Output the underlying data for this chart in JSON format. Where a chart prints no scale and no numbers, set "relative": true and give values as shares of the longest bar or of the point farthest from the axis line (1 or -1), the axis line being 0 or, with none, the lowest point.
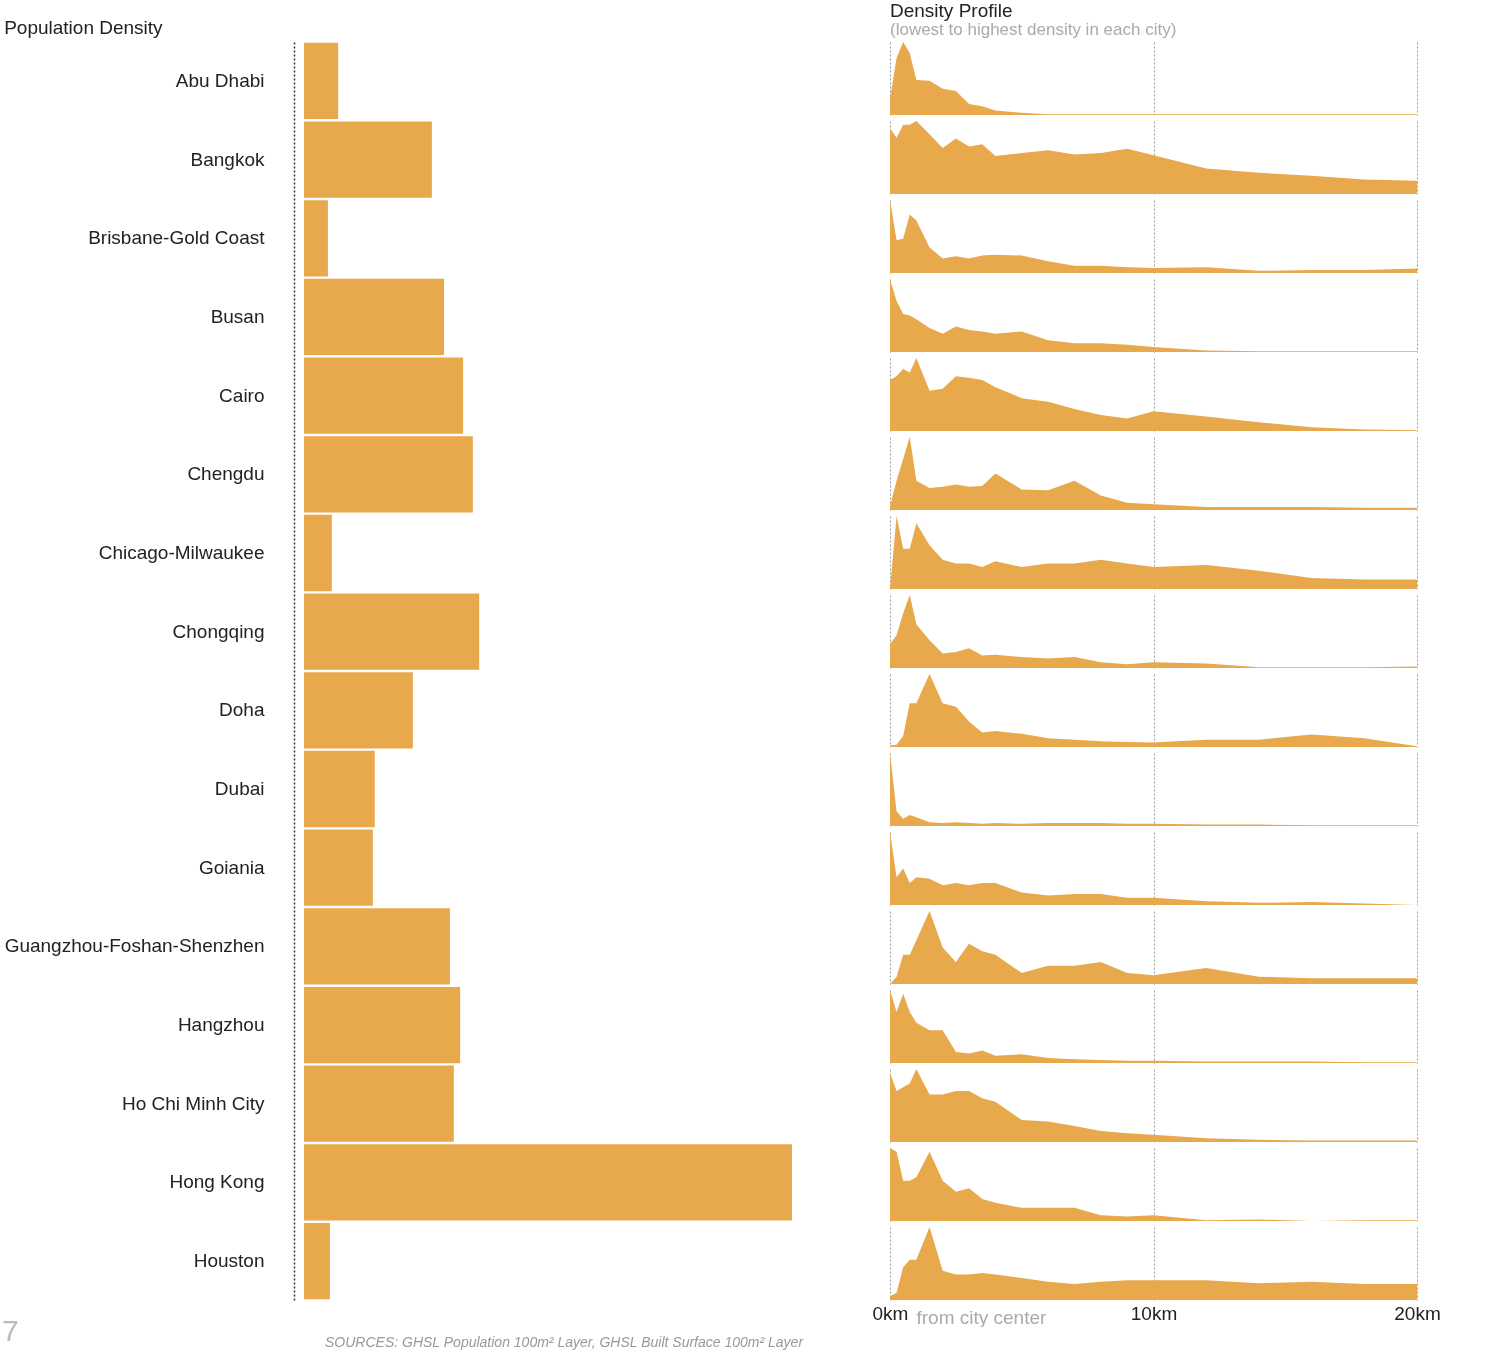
{
  "chart_data": [
    {
      "type": "bar",
      "title": "Population Density",
      "orientation": "horizontal",
      "relative": true,
      "color": "#e8a84c",
      "categories": [
        "Abu Dhabi",
        "Bangkok",
        "Brisbane-Gold Coast",
        "Busan",
        "Cairo",
        "Chengdu",
        "Chicago-Milwaukee",
        "Chongqing",
        "Doha",
        "Dubai",
        "Goiania",
        "Guangzhou-Foshan-Shenzhen",
        "Hangzhou",
        "Ho Chi Minh City",
        "Hong Kong",
        "Houston"
      ],
      "values": [
        0.07,
        0.262,
        0.049,
        0.287,
        0.326,
        0.346,
        0.057,
        0.359,
        0.223,
        0.145,
        0.141,
        0.299,
        0.32,
        0.307,
        1,
        0.053
      ],
      "annotations": [
        "SOURCES: GHSL Population 100m² Layer, GHSL Built Surface 100m² Layer",
        "7"
      ]
    },
    {
      "type": "area",
      "title": "Density Profile",
      "subtitle": "(lowest to highest density in each city)",
      "relative": true,
      "color": "#e8a84c",
      "xlim": [
        0,
        20
      ],
      "xticks": [
        0,
        10,
        20
      ],
      "grid": "x",
      "tick_labels": false,
      "x": [
        0,
        0.25,
        0.5,
        0.75,
        1,
        1.5,
        2,
        2.5,
        3,
        3.5,
        4,
        5,
        6,
        7,
        8,
        9,
        10,
        12,
        14,
        16,
        18,
        20
      ],
      "values": [
        0.22,
        0.78,
        1,
        0.85,
        0.48,
        0.47,
        0.36,
        0.33,
        0.15,
        0.12,
        0.06,
        0.03,
        0.01,
        0.01,
        0.01,
        0.01,
        0.01,
        0.01,
        0.01,
        0.01,
        0.01,
        0.01
      ]
    },
    {
      "type": "area",
      "relative": true,
      "color": "#e8a84c",
      "xlim": [
        0,
        20
      ],
      "xticks": [
        0,
        10,
        20
      ],
      "grid": "x",
      "tick_labels": false,
      "x": [
        0,
        0.25,
        0.5,
        0.75,
        1,
        1.5,
        2,
        2.5,
        3,
        3.5,
        4,
        5,
        6,
        7,
        8,
        9,
        10,
        12,
        14,
        16,
        18,
        20
      ],
      "values": [
        0.9,
        0.77,
        0.95,
        0.95,
        1,
        0.82,
        0.63,
        0.76,
        0.65,
        0.68,
        0.52,
        0.56,
        0.6,
        0.54,
        0.56,
        0.62,
        0.53,
        0.35,
        0.29,
        0.25,
        0.2,
        0.18
      ]
    },
    {
      "type": "area",
      "relative": true,
      "color": "#e8a84c",
      "xlim": [
        0,
        20
      ],
      "xticks": [
        0,
        10,
        20
      ],
      "grid": "x",
      "tick_labels": false,
      "x": [
        0,
        0.25,
        0.5,
        0.75,
        1,
        1.5,
        2,
        2.5,
        3,
        3.5,
        4,
        5,
        6,
        7,
        8,
        9,
        10,
        12,
        14,
        16,
        18,
        20
      ],
      "values": [
        1,
        0.45,
        0.47,
        0.8,
        0.72,
        0.35,
        0.2,
        0.23,
        0.2,
        0.24,
        0.25,
        0.24,
        0.16,
        0.1,
        0.1,
        0.08,
        0.07,
        0.08,
        0.03,
        0.04,
        0.04,
        0.06
      ]
    },
    {
      "type": "area",
      "relative": true,
      "color": "#e8a84c",
      "xlim": [
        0,
        20
      ],
      "xticks": [
        0,
        10,
        20
      ],
      "grid": "x",
      "tick_labels": false,
      "x": [
        0,
        0.25,
        0.5,
        0.75,
        1,
        1.5,
        2,
        2.5,
        3,
        3.5,
        4,
        5,
        6,
        7,
        8,
        9,
        10,
        12,
        14,
        16,
        18,
        20
      ],
      "values": [
        1,
        0.7,
        0.52,
        0.5,
        0.45,
        0.33,
        0.25,
        0.35,
        0.3,
        0.28,
        0.25,
        0.28,
        0.16,
        0.12,
        0.12,
        0.1,
        0.07,
        0.02,
        0.01,
        0.01,
        0.01,
        0.01
      ]
    },
    {
      "type": "area",
      "relative": true,
      "color": "#e8a84c",
      "xlim": [
        0,
        20
      ],
      "xticks": [
        0,
        10,
        20
      ],
      "grid": "x",
      "tick_labels": false,
      "x": [
        0,
        0.25,
        0.5,
        0.75,
        1,
        1.5,
        2,
        2.5,
        3,
        3.5,
        4,
        5,
        6,
        7,
        8,
        9,
        10,
        12,
        14,
        16,
        18,
        20
      ],
      "values": [
        0.7,
        0.75,
        0.85,
        0.8,
        1,
        0.55,
        0.58,
        0.75,
        0.73,
        0.7,
        0.6,
        0.45,
        0.4,
        0.3,
        0.22,
        0.17,
        0.27,
        0.2,
        0.12,
        0.05,
        0.02,
        0.01
      ]
    },
    {
      "type": "area",
      "relative": true,
      "color": "#e8a84c",
      "xlim": [
        0,
        20
      ],
      "xticks": [
        0,
        10,
        20
      ],
      "grid": "x",
      "tick_labels": false,
      "x": [
        0,
        0.25,
        0.5,
        0.75,
        1,
        1.5,
        2,
        2.5,
        3,
        3.5,
        4,
        5,
        6,
        7,
        8,
        9,
        10,
        12,
        14,
        16,
        18,
        20
      ],
      "values": [
        0.05,
        0.4,
        0.7,
        1,
        0.4,
        0.3,
        0.32,
        0.35,
        0.32,
        0.33,
        0.5,
        0.28,
        0.27,
        0.4,
        0.2,
        0.1,
        0.08,
        0.04,
        0.04,
        0.04,
        0.03,
        0.03
      ]
    },
    {
      "type": "area",
      "relative": true,
      "color": "#e8a84c",
      "xlim": [
        0,
        20
      ],
      "xticks": [
        0,
        10,
        20
      ],
      "grid": "x",
      "tick_labels": false,
      "x": [
        0,
        0.25,
        0.5,
        0.75,
        1,
        1.5,
        2,
        2.5,
        3,
        3.5,
        4,
        5,
        6,
        7,
        8,
        9,
        10,
        12,
        14,
        16,
        18,
        20
      ],
      "values": [
        0,
        1,
        0.55,
        0.55,
        0.9,
        0.6,
        0.4,
        0.35,
        0.35,
        0.3,
        0.38,
        0.3,
        0.35,
        0.35,
        0.4,
        0.35,
        0.3,
        0.33,
        0.25,
        0.15,
        0.13,
        0.13
      ]
    },
    {
      "type": "area",
      "relative": true,
      "color": "#e8a84c",
      "xlim": [
        0,
        20
      ],
      "xticks": [
        0,
        10,
        20
      ],
      "grid": "x",
      "tick_labels": false,
      "x": [
        0,
        0.25,
        0.5,
        0.75,
        1,
        1.5,
        2,
        2.5,
        3,
        3.5,
        4,
        5,
        6,
        7,
        8,
        9,
        10,
        12,
        14,
        16,
        18,
        20
      ],
      "values": [
        0.33,
        0.45,
        0.75,
        1,
        0.6,
        0.38,
        0.2,
        0.22,
        0.27,
        0.17,
        0.18,
        0.15,
        0.13,
        0.15,
        0.08,
        0.05,
        0.08,
        0.06,
        0.01,
        0.01,
        0.01,
        0.02
      ]
    },
    {
      "type": "area",
      "relative": true,
      "color": "#e8a84c",
      "xlim": [
        0,
        20
      ],
      "xticks": [
        0,
        10,
        20
      ],
      "grid": "x",
      "tick_labels": false,
      "x": [
        0,
        0.25,
        0.5,
        0.75,
        1,
        1.5,
        2,
        2.5,
        3,
        3.5,
        4,
        5,
        6,
        7,
        8,
        9,
        10,
        12,
        14,
        16,
        18,
        20
      ],
      "values": [
        0.02,
        0.03,
        0.15,
        0.6,
        0.6,
        1,
        0.6,
        0.55,
        0.35,
        0.2,
        0.22,
        0.18,
        0.12,
        0.1,
        0.08,
        0.07,
        0.06,
        0.1,
        0.1,
        0.17,
        0.12,
        0.01
      ]
    },
    {
      "type": "area",
      "relative": true,
      "color": "#e8a84c",
      "xlim": [
        0,
        20
      ],
      "xticks": [
        0,
        10,
        20
      ],
      "grid": "x",
      "tick_labels": false,
      "x": [
        0,
        0.25,
        0.5,
        0.75,
        1,
        1.5,
        2,
        2.5,
        3,
        3.5,
        4,
        5,
        6,
        7,
        8,
        9,
        10,
        12,
        14,
        16,
        18,
        20
      ],
      "values": [
        1,
        0.2,
        0.1,
        0.15,
        0.12,
        0.05,
        0.04,
        0.05,
        0.04,
        0.03,
        0.04,
        0.03,
        0.04,
        0.04,
        0.04,
        0.03,
        0.03,
        0.02,
        0.02,
        0.01,
        0.01,
        0.01
      ]
    },
    {
      "type": "area",
      "relative": true,
      "color": "#e8a84c",
      "xlim": [
        0,
        20
      ],
      "xticks": [
        0,
        10,
        20
      ],
      "grid": "x",
      "tick_labels": false,
      "x": [
        0,
        0.25,
        0.5,
        0.75,
        1,
        1.5,
        2,
        2.5,
        3,
        3.5,
        4,
        5,
        6,
        7,
        8,
        9,
        10,
        12,
        14,
        16,
        18,
        20
      ],
      "values": [
        1,
        0.38,
        0.5,
        0.3,
        0.38,
        0.36,
        0.27,
        0.3,
        0.27,
        0.3,
        0.3,
        0.17,
        0.13,
        0.15,
        0.15,
        0.1,
        0.1,
        0.05,
        0.03,
        0.04,
        0.02,
        0
      ]
    },
    {
      "type": "area",
      "relative": true,
      "color": "#e8a84c",
      "xlim": [
        0,
        20
      ],
      "xticks": [
        0,
        10,
        20
      ],
      "grid": "x",
      "tick_labels": false,
      "x": [
        0,
        0.25,
        0.5,
        0.75,
        1,
        1.5,
        2,
        2.5,
        3,
        3.5,
        4,
        5,
        6,
        7,
        8,
        9,
        10,
        12,
        14,
        16,
        18,
        20
      ],
      "values": [
        0,
        0.1,
        0.4,
        0.4,
        0.6,
        1,
        0.5,
        0.3,
        0.55,
        0.45,
        0.4,
        0.15,
        0.25,
        0.25,
        0.3,
        0.15,
        0.12,
        0.22,
        0.1,
        0.08,
        0.08,
        0.08
      ]
    },
    {
      "type": "area",
      "relative": true,
      "color": "#e8a84c",
      "xlim": [
        0,
        20
      ],
      "xticks": [
        0,
        10,
        20
      ],
      "grid": "x",
      "tick_labels": false,
      "x": [
        0,
        0.25,
        0.5,
        0.75,
        1,
        1.5,
        2,
        2.5,
        3,
        3.5,
        4,
        5,
        6,
        7,
        8,
        9,
        10,
        12,
        14,
        16,
        18,
        20
      ],
      "values": [
        1,
        0.7,
        0.95,
        0.7,
        0.55,
        0.45,
        0.45,
        0.15,
        0.13,
        0.17,
        0.1,
        0.12,
        0.07,
        0.05,
        0.04,
        0.03,
        0.03,
        0.02,
        0.02,
        0.02,
        0.01,
        0.01
      ]
    },
    {
      "type": "area",
      "relative": true,
      "color": "#e8a84c",
      "xlim": [
        0,
        20
      ],
      "xticks": [
        0,
        10,
        20
      ],
      "grid": "x",
      "tick_labels": false,
      "x": [
        0,
        0.25,
        0.5,
        0.75,
        1,
        1.5,
        2,
        2.5,
        3,
        3.5,
        4,
        5,
        6,
        7,
        8,
        9,
        10,
        12,
        14,
        16,
        18,
        20
      ],
      "values": [
        0.95,
        0.7,
        0.75,
        0.8,
        1,
        0.65,
        0.65,
        0.7,
        0.7,
        0.6,
        0.55,
        0.3,
        0.28,
        0.22,
        0.15,
        0.12,
        0.1,
        0.05,
        0.03,
        0.02,
        0.02,
        0.02
      ]
    },
    {
      "type": "area",
      "relative": true,
      "color": "#e8a84c",
      "xlim": [
        0,
        20
      ],
      "xticks": [
        0,
        10,
        20
      ],
      "grid": "x",
      "tick_labels": false,
      "x": [
        0,
        0.25,
        0.5,
        0.75,
        1,
        1.5,
        2,
        2.5,
        3,
        3.5,
        4,
        5,
        6,
        7,
        8,
        9,
        10,
        12,
        14,
        16,
        18,
        20
      ],
      "values": [
        1,
        0.95,
        0.55,
        0.55,
        0.6,
        0.95,
        0.55,
        0.4,
        0.45,
        0.3,
        0.25,
        0.18,
        0.18,
        0.18,
        0.08,
        0.06,
        0.08,
        0.01,
        0.02,
        0,
        0.01,
        0.01
      ]
    },
    {
      "type": "area",
      "relative": true,
      "color": "#e8a84c",
      "xlim": [
        0,
        20
      ],
      "xticks": [
        {
          "value": 0,
          "label": "0km"
        },
        {
          "value": 10,
          "label": "10km"
        },
        {
          "value": 20,
          "label": "20km"
        }
      ],
      "grid": "x",
      "tick_labels": "x",
      "xlabel": "from city center",
      "x": [
        0,
        0.25,
        0.5,
        0.75,
        1,
        1.5,
        2,
        2.5,
        3,
        3.5,
        4,
        5,
        6,
        7,
        8,
        9,
        10,
        12,
        14,
        16,
        18,
        20
      ],
      "values": [
        0.05,
        0.1,
        0.45,
        0.55,
        0.55,
        1,
        0.4,
        0.35,
        0.35,
        0.37,
        0.35,
        0.3,
        0.25,
        0.22,
        0.25,
        0.27,
        0.27,
        0.27,
        0.23,
        0.25,
        0.22,
        0.22
      ]
    }
  ]
}
